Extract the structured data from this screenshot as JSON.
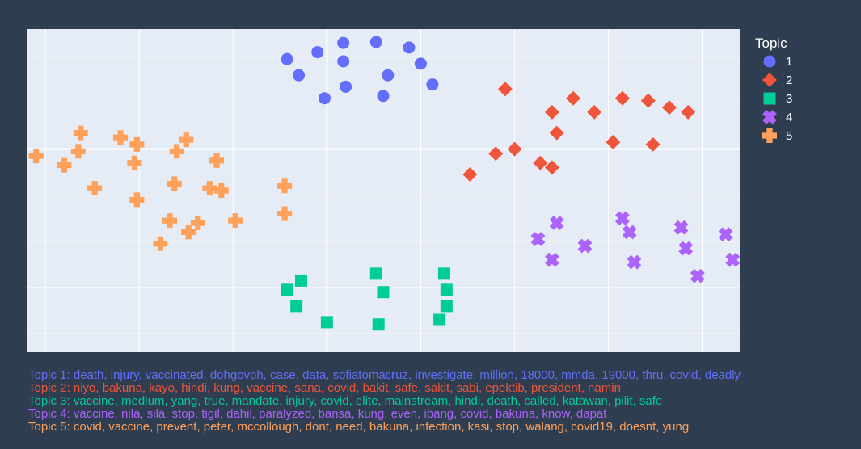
{
  "chart_data": {
    "type": "scatter",
    "title": "",
    "xlabel": "",
    "ylabel": "",
    "xlim": [
      -6.4,
      8.8
    ],
    "ylim": [
      -4.4,
      2.6
    ],
    "grid": true,
    "legend": {
      "title": "Topic",
      "placement": "right"
    },
    "series": [
      {
        "name": "1",
        "color": "#636efa",
        "symbol": "circle",
        "points": [
          [
            -0.2,
            2.1
          ],
          [
            0.35,
            2.3
          ],
          [
            1.05,
            2.32
          ],
          [
            1.75,
            2.2
          ],
          [
            -0.85,
            1.95
          ],
          [
            0.35,
            1.9
          ],
          [
            2.0,
            1.85
          ],
          [
            -0.6,
            1.6
          ],
          [
            0.4,
            1.35
          ],
          [
            1.3,
            1.6
          ],
          [
            2.25,
            1.4
          ],
          [
            -0.05,
            1.1
          ],
          [
            1.2,
            1.15
          ]
        ]
      },
      {
        "name": "2",
        "color": "#ef553b",
        "symbol": "diamond",
        "points": [
          [
            3.8,
            1.3
          ],
          [
            5.25,
            1.1
          ],
          [
            6.3,
            1.1
          ],
          [
            6.85,
            1.05
          ],
          [
            7.3,
            0.9
          ],
          [
            4.8,
            0.8
          ],
          [
            5.7,
            0.8
          ],
          [
            7.7,
            0.8
          ],
          [
            4.9,
            0.35
          ],
          [
            6.1,
            0.15
          ],
          [
            6.95,
            0.1
          ],
          [
            4.55,
            -0.3
          ],
          [
            4.0,
            0.0
          ],
          [
            3.6,
            -0.1
          ],
          [
            4.8,
            -0.4
          ],
          [
            3.05,
            -0.55
          ]
        ]
      },
      {
        "name": "3",
        "color": "#00cc96",
        "symbol": "square",
        "points": [
          [
            1.05,
            -2.7
          ],
          [
            -0.55,
            -2.85
          ],
          [
            2.5,
            -2.7
          ],
          [
            -0.85,
            -3.05
          ],
          [
            2.55,
            -3.05
          ],
          [
            1.2,
            -3.1
          ],
          [
            -0.65,
            -3.4
          ],
          [
            2.55,
            -3.4
          ],
          [
            0.0,
            -3.75
          ],
          [
            1.1,
            -3.8
          ],
          [
            2.4,
            -3.7
          ]
        ]
      },
      {
        "name": "4",
        "color": "#ab63fa",
        "symbol": "x",
        "points": [
          [
            6.3,
            -1.5
          ],
          [
            4.9,
            -1.6
          ],
          [
            7.55,
            -1.7
          ],
          [
            6.45,
            -1.8
          ],
          [
            8.5,
            -1.85
          ],
          [
            4.5,
            -1.95
          ],
          [
            5.5,
            -2.1
          ],
          [
            7.65,
            -2.15
          ],
          [
            4.8,
            -2.4
          ],
          [
            6.55,
            -2.45
          ],
          [
            7.9,
            -2.75
          ],
          [
            8.65,
            -2.4
          ]
        ]
      },
      {
        "name": "5",
        "color": "#ffa15a",
        "symbol": "cross",
        "points": [
          [
            -5.25,
            0.35
          ],
          [
            -4.4,
            0.25
          ],
          [
            -3.0,
            0.2
          ],
          [
            -4.05,
            0.1
          ],
          [
            -5.3,
            -0.05
          ],
          [
            -3.2,
            -0.05
          ],
          [
            -6.2,
            -0.15
          ],
          [
            -2.35,
            -0.25
          ],
          [
            -4.1,
            -0.3
          ],
          [
            -5.6,
            -0.35
          ],
          [
            -2.5,
            -0.85
          ],
          [
            -4.95,
            -0.85
          ],
          [
            -0.9,
            -0.8
          ],
          [
            -3.25,
            -0.75
          ],
          [
            -2.25,
            -0.9
          ],
          [
            -4.05,
            -1.1
          ],
          [
            -0.9,
            -1.4
          ],
          [
            -3.35,
            -1.55
          ],
          [
            -1.95,
            -1.55
          ],
          [
            -2.75,
            -1.6
          ],
          [
            -2.95,
            -1.8
          ],
          [
            -3.55,
            -2.05
          ]
        ]
      }
    ]
  },
  "topic_notes": [
    {
      "text": "Topic 1: death, injury, vaccinated, dohgovph, case, data, sofiatomacruz, investigate, million, 18000, mmda, 19000, thru, covid, deadly",
      "color": "#636efa"
    },
    {
      "text": "Topic 2: niyo, bakuna, kayo, hindi, kung, vaccine, sana, covid, bakit, safe, sakit, sabi, epektib, president, namin",
      "color": "#ef553b"
    },
    {
      "text": "Topic 3: vaccine, medium, yang, true, mandate, injury, covid, elite, mainstream, hindi, death, called, katawan, pilit, safe",
      "color": "#00cc96"
    },
    {
      "text": "Topic 4: vaccine, nila, sila, stop, tigil, dahil, paralyzed, bansa, kung, even, ibang, covid, bakuna, know, dapat",
      "color": "#ab63fa"
    },
    {
      "text": "Topic 5: covid, vaccine, prevent, peter, mccollough, dont, need, bakuna, infection, kasi, stop, walang, covid19, doesnt, yung",
      "color": "#ffa15a"
    }
  ]
}
